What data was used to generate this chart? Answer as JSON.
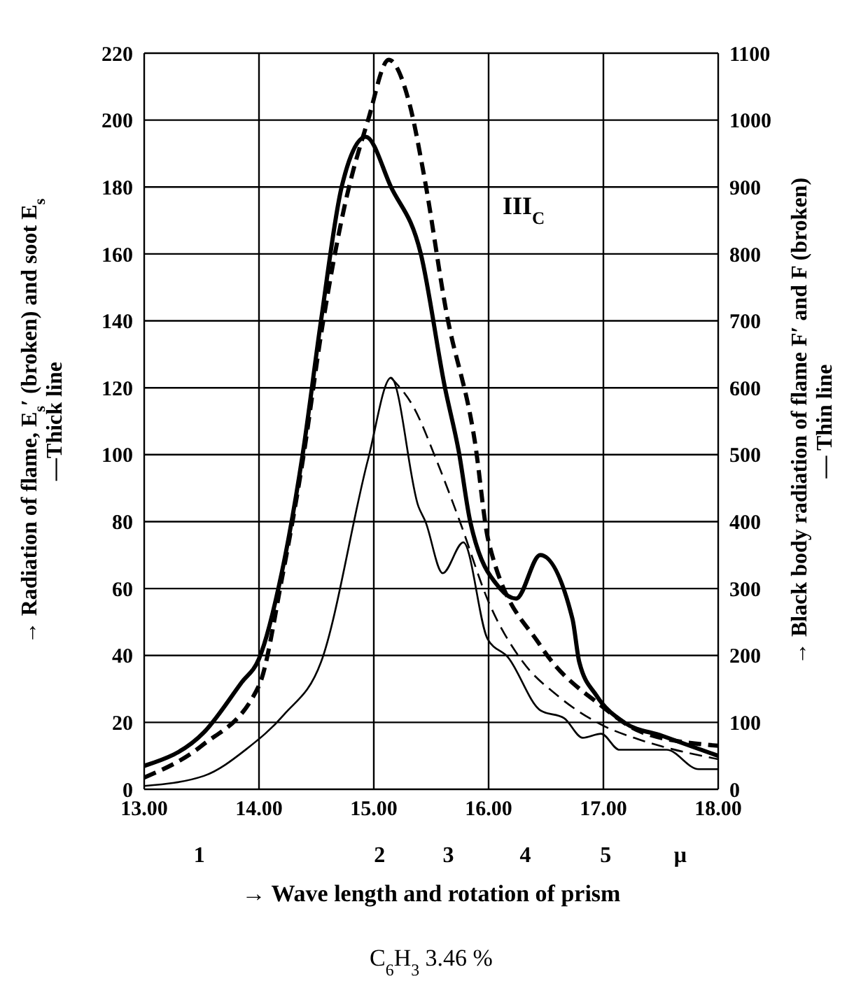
{
  "chart_data": {
    "type": "line",
    "xlabel": "→ Wave length and rotation of prism",
    "ylabel": "→ Radiation of flame, E$_{s}$′ (broken) and soot E$_{s}$\n—Thick line",
    "y2label": "→ Black body radiation of flame F′ and F (broken)\n— Thin line",
    "annotations": [
      "III$_{C}$",
      "C$_{6}$H$_{3}$ 3.46 %",
      "1",
      "2",
      "3",
      "4",
      "5",
      "μ"
    ],
    "xlim": [
      13,
      18
    ],
    "xticks": [
      {
        "value": 13,
        "label": "13.00"
      },
      {
        "value": 14,
        "label": "14.00"
      },
      {
        "value": 15,
        "label": "15.00"
      },
      {
        "value": 16,
        "label": "16.00"
      },
      {
        "value": 17,
        "label": "17.00"
      },
      {
        "value": 18,
        "label": "18.00"
      }
    ],
    "ylim": [
      0,
      220
    ],
    "yticks": [
      0,
      20,
      40,
      60,
      80,
      100,
      120,
      140,
      160,
      180,
      200,
      220
    ],
    "y2lim": [
      0,
      1100
    ],
    "y2ticks": [
      0,
      100,
      200,
      300,
      400,
      500,
      600,
      700,
      800,
      900,
      1000,
      1100
    ],
    "grid": true,
    "series": [
      {
        "color": "#000000",
        "line_style": "solid",
        "x": [
          13.0,
          13.52,
          13.85,
          14.0,
          14.2,
          14.38,
          14.54,
          14.72,
          14.93,
          15.15,
          15.41,
          15.62,
          15.74,
          15.84,
          16.1,
          16.24,
          16.45,
          16.73,
          16.79,
          16.94,
          17.18,
          17.51,
          18.0
        ],
        "values": [
          7,
          17,
          32,
          39,
          65,
          100,
          140,
          180,
          195,
          180,
          160,
          120,
          101,
          80,
          60,
          57,
          70,
          51,
          38,
          28,
          20,
          16,
          10
        ]
      },
      {
        "color": "#000000",
        "line_style": "dashed",
        "x": [
          13.0,
          13.5,
          14.0,
          14.2,
          14.38,
          14.55,
          14.75,
          14.95,
          15.13,
          15.31,
          15.44,
          15.63,
          15.88,
          16.0,
          16.45,
          16.98,
          17.34,
          18.0
        ],
        "values": [
          3.5,
          13,
          31,
          63,
          98,
          138,
          175,
          200,
          218,
          205,
          183,
          143,
          104,
          74,
          43,
          25,
          17,
          13
        ]
      },
      {
        "color": "#000000",
        "line_style": "solid",
        "axis": "y2",
        "x": [
          13.0,
          13.52,
          13.89,
          14.22,
          14.54,
          14.95,
          15.15,
          15.39,
          15.45,
          15.6,
          15.78,
          15.99,
          16.17,
          16.45,
          16.66,
          16.82,
          16.98,
          17.14,
          17.55,
          17.83,
          18.0
        ],
        "values": [
          5,
          20,
          60,
          112,
          190,
          493,
          615,
          422,
          400,
          323,
          369,
          225,
          197,
          118,
          106,
          77,
          83,
          59,
          59,
          30,
          30
        ]
      },
      {
        "color": "#000000",
        "line_style": "dashed",
        "axis": "y2",
        "x": [
          15.15,
          15.35,
          15.55,
          15.75,
          16.0,
          16.3,
          16.6,
          17.0,
          17.3,
          17.6,
          18.0
        ],
        "values": [
          615,
          570,
          490,
          400,
          280,
          190,
          140,
          95,
          75,
          60,
          45
        ]
      }
    ]
  }
}
